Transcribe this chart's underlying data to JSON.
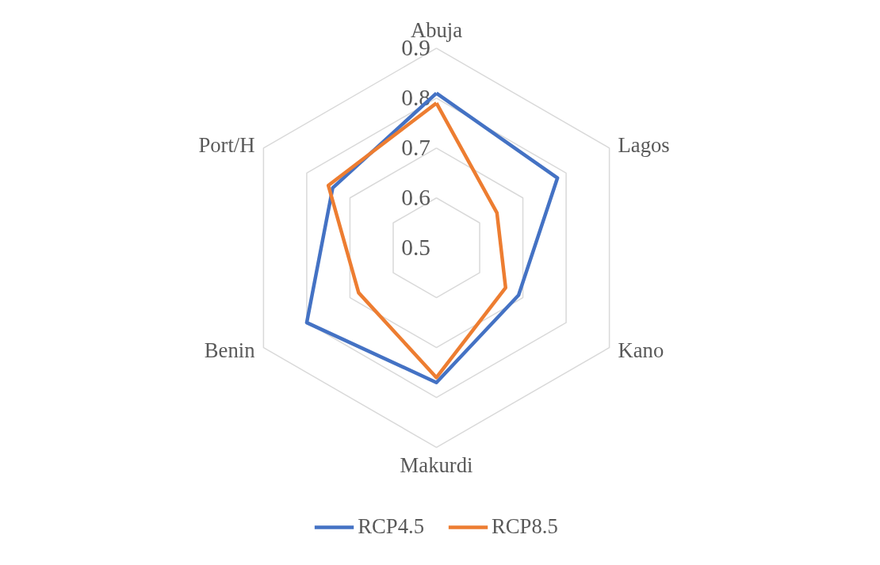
{
  "chart_data": {
    "type": "radar",
    "categories": [
      "Abuja",
      "Lagos",
      "Kano",
      "Makurdi",
      "Benin",
      "Port/H"
    ],
    "series": [
      {
        "name": "RCP4.5",
        "color": "#4472c4",
        "values": [
          0.81,
          0.78,
          0.69,
          0.77,
          0.8,
          0.74
        ]
      },
      {
        "name": "RCP8.5",
        "color": "#ed7d31",
        "values": [
          0.79,
          0.64,
          0.66,
          0.76,
          0.68,
          0.75
        ]
      }
    ],
    "ylim": [
      0.5,
      0.9
    ],
    "yticks": [
      0.5,
      0.6,
      0.7,
      0.8,
      0.9
    ],
    "grid": true,
    "legend": "bottom"
  }
}
